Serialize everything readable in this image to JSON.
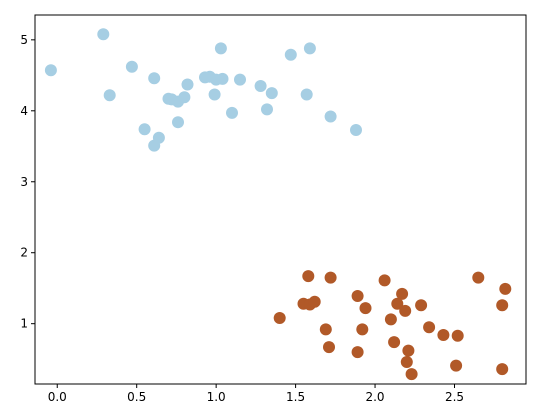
{
  "chart_data": {
    "type": "scatter",
    "title": "",
    "xlabel": "",
    "ylabel": "",
    "xlim": [
      -0.14,
      2.95
    ],
    "ylim": [
      0.15,
      5.35
    ],
    "grid": false,
    "legend": "none",
    "x_ticks": [
      {
        "value": 0.0,
        "label": "0.0"
      },
      {
        "value": 0.5,
        "label": "0.5"
      },
      {
        "value": 1.0,
        "label": "1.0"
      },
      {
        "value": 1.5,
        "label": "1.5"
      },
      {
        "value": 2.0,
        "label": "2.0"
      },
      {
        "value": 2.5,
        "label": "2.5"
      }
    ],
    "y_ticks": [
      {
        "value": 1,
        "label": "1"
      },
      {
        "value": 2,
        "label": "2"
      },
      {
        "value": 3,
        "label": "3"
      },
      {
        "value": 4,
        "label": "4"
      },
      {
        "value": 5,
        "label": "5"
      }
    ],
    "series": [
      {
        "color": "#a6cee3",
        "points": [
          [
            -0.04,
            4.57
          ],
          [
            0.29,
            5.08
          ],
          [
            0.33,
            4.22
          ],
          [
            0.47,
            4.62
          ],
          [
            0.55,
            3.74
          ],
          [
            0.61,
            4.46
          ],
          [
            0.61,
            3.51
          ],
          [
            0.64,
            3.62
          ],
          [
            0.7,
            4.17
          ],
          [
            0.72,
            4.16
          ],
          [
            0.76,
            4.13
          ],
          [
            0.76,
            3.84
          ],
          [
            0.8,
            4.19
          ],
          [
            0.82,
            4.37
          ],
          [
            0.93,
            4.47
          ],
          [
            0.96,
            4.48
          ],
          [
            0.99,
            4.23
          ],
          [
            1.0,
            4.44
          ],
          [
            1.03,
            4.88
          ],
          [
            1.04,
            4.45
          ],
          [
            1.1,
            3.97
          ],
          [
            1.15,
            4.44
          ],
          [
            1.28,
            4.35
          ],
          [
            1.32,
            4.02
          ],
          [
            1.35,
            4.25
          ],
          [
            1.47,
            4.79
          ],
          [
            1.57,
            4.23
          ],
          [
            1.59,
            4.88
          ],
          [
            1.72,
            3.92
          ],
          [
            1.88,
            3.73
          ]
        ]
      },
      {
        "color": "#b15928",
        "points": [
          [
            1.4,
            1.08
          ],
          [
            1.55,
            1.28
          ],
          [
            1.58,
            1.67
          ],
          [
            1.59,
            1.27
          ],
          [
            1.62,
            1.31
          ],
          [
            1.69,
            0.92
          ],
          [
            1.71,
            0.67
          ],
          [
            1.72,
            1.65
          ],
          [
            1.89,
            1.39
          ],
          [
            1.89,
            0.6
          ],
          [
            1.92,
            0.92
          ],
          [
            1.94,
            1.22
          ],
          [
            2.06,
            1.61
          ],
          [
            2.1,
            1.06
          ],
          [
            2.12,
            0.74
          ],
          [
            2.14,
            1.28
          ],
          [
            2.17,
            1.42
          ],
          [
            2.19,
            1.18
          ],
          [
            2.2,
            0.46
          ],
          [
            2.21,
            0.62
          ],
          [
            2.23,
            0.29
          ],
          [
            2.29,
            1.26
          ],
          [
            2.34,
            0.95
          ],
          [
            2.43,
            0.84
          ],
          [
            2.51,
            0.41
          ],
          [
            2.52,
            0.83
          ],
          [
            2.65,
            1.65
          ],
          [
            2.8,
            1.26
          ],
          [
            2.8,
            0.36
          ],
          [
            2.82,
            1.49
          ]
        ]
      }
    ]
  }
}
